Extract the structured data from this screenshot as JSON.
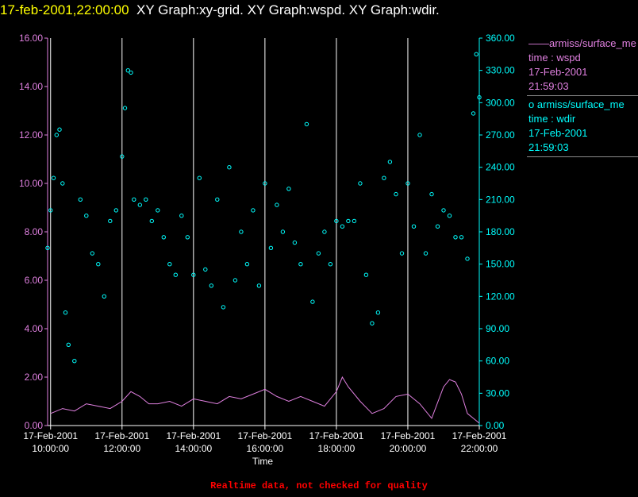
{
  "header": {
    "timestamp": "17-feb-2001,22:00:00",
    "titles": "XY Graph:xy-grid.  XY Graph:wspd.  XY Graph:wdir."
  },
  "legend": {
    "wspd": {
      "name": "armiss/surface_me",
      "line1": "time : wspd",
      "line2": "17-Feb-2001",
      "line3": "21:59:03",
      "symbol": "——"
    },
    "wdir": {
      "name": "armiss/surface_me",
      "line1": "time : wdir",
      "line2": "17-Feb-2001",
      "line3": "21:59:03",
      "symbol": "o"
    }
  },
  "footer": "Realtime data, not checked for quality",
  "colors": {
    "wspd": "#e080e0",
    "wdir": "#00ffff",
    "grid": "#ffffff",
    "timestamp": "#ffff00",
    "footer": "#ff0000"
  },
  "chart_data": {
    "type": "line",
    "xlabel": "Time",
    "x_range": [
      "17-Feb-2001 09:55:00",
      "17-Feb-2001 22:00:00"
    ],
    "x_ticks": [
      {
        "date": "17-Feb-2001",
        "time": "10:00:00"
      },
      {
        "date": "17-Feb-2001",
        "time": "12:00:00"
      },
      {
        "date": "17-Feb-2001",
        "time": "14:00:00"
      },
      {
        "date": "17-Feb-2001",
        "time": "16:00:00"
      },
      {
        "date": "17-Feb-2001",
        "time": "18:00:00"
      },
      {
        "date": "17-Feb-2001",
        "time": "20:00:00"
      },
      {
        "date": "17-Feb-2001",
        "time": "22:00:00"
      }
    ],
    "y_left": {
      "range": [
        0,
        16
      ],
      "ticks": [
        "0.00",
        "2.00",
        "4.00",
        "6.00",
        "8.00",
        "10.00",
        "12.00",
        "14.00",
        "16.00"
      ]
    },
    "y_right": {
      "range": [
        0,
        360
      ],
      "ticks": [
        "0.00",
        "30.00",
        "60.00",
        "90.00",
        "120.00",
        "150.00",
        "180.00",
        "210.00",
        "240.00",
        "270.00",
        "300.00",
        "330.00",
        "360.00"
      ]
    },
    "vertical_grid": true,
    "legend_position": "right",
    "series": [
      {
        "name": "wspd",
        "axis": "left",
        "style": "line",
        "times": [
          "10:00",
          "10:20",
          "10:40",
          "11:00",
          "11:20",
          "11:40",
          "12:00",
          "12:15",
          "12:30",
          "12:45",
          "13:00",
          "13:20",
          "13:40",
          "14:00",
          "14:20",
          "14:40",
          "15:00",
          "15:20",
          "15:40",
          "16:00",
          "16:20",
          "16:40",
          "17:00",
          "17:20",
          "17:40",
          "18:00",
          "18:10",
          "18:20",
          "18:40",
          "19:00",
          "19:20",
          "19:40",
          "20:00",
          "20:20",
          "20:40",
          "21:00",
          "21:10",
          "21:20",
          "21:30",
          "21:40",
          "21:50",
          "22:00"
        ],
        "values": [
          0.5,
          0.7,
          0.6,
          0.9,
          0.8,
          0.7,
          1.0,
          1.4,
          1.2,
          0.9,
          0.9,
          1.0,
          0.8,
          1.1,
          1.0,
          0.9,
          1.2,
          1.1,
          1.3,
          1.5,
          1.2,
          1.0,
          1.2,
          1.0,
          0.8,
          1.4,
          2.0,
          1.6,
          1.0,
          0.5,
          0.7,
          1.2,
          1.3,
          0.9,
          0.3,
          1.6,
          1.9,
          1.8,
          1.3,
          0.5,
          0.3,
          0.1
        ]
      },
      {
        "name": "wdir",
        "axis": "right",
        "style": "markers",
        "times": [
          "09:55",
          "10:00",
          "10:05",
          "10:10",
          "10:15",
          "10:20",
          "10:25",
          "10:30",
          "10:40",
          "10:50",
          "11:00",
          "11:10",
          "11:20",
          "11:30",
          "11:40",
          "11:50",
          "12:00",
          "12:05",
          "12:10",
          "12:15",
          "12:20",
          "12:30",
          "12:40",
          "12:50",
          "13:00",
          "13:10",
          "13:20",
          "13:30",
          "13:40",
          "13:50",
          "14:00",
          "14:10",
          "14:20",
          "14:30",
          "14:40",
          "14:50",
          "15:00",
          "15:10",
          "15:20",
          "15:30",
          "15:40",
          "15:50",
          "16:00",
          "16:10",
          "16:20",
          "16:30",
          "16:40",
          "16:50",
          "17:00",
          "17:10",
          "17:20",
          "17:30",
          "17:40",
          "17:50",
          "18:00",
          "18:10",
          "18:20",
          "18:30",
          "18:40",
          "18:50",
          "19:00",
          "19:10",
          "19:20",
          "19:30",
          "19:40",
          "19:50",
          "20:00",
          "20:10",
          "20:20",
          "20:30",
          "20:40",
          "20:50",
          "21:00",
          "21:10",
          "21:20",
          "21:30",
          "21:40",
          "21:50",
          "21:55",
          "22:00"
        ],
        "values": [
          165,
          200,
          230,
          270,
          275,
          225,
          105,
          75,
          60,
          210,
          195,
          160,
          150,
          120,
          190,
          200,
          250,
          295,
          330,
          328,
          210,
          205,
          210,
          190,
          200,
          175,
          150,
          140,
          195,
          175,
          140,
          230,
          145,
          130,
          210,
          110,
          240,
          135,
          180,
          150,
          200,
          130,
          225,
          165,
          205,
          180,
          220,
          170,
          150,
          280,
          115,
          160,
          180,
          150,
          190,
          185,
          190,
          190,
          225,
          140,
          95,
          105,
          230,
          245,
          215,
          160,
          225,
          185,
          270,
          160,
          215,
          185,
          200,
          195,
          175,
          175,
          155,
          290,
          345,
          305
        ]
      }
    ]
  }
}
